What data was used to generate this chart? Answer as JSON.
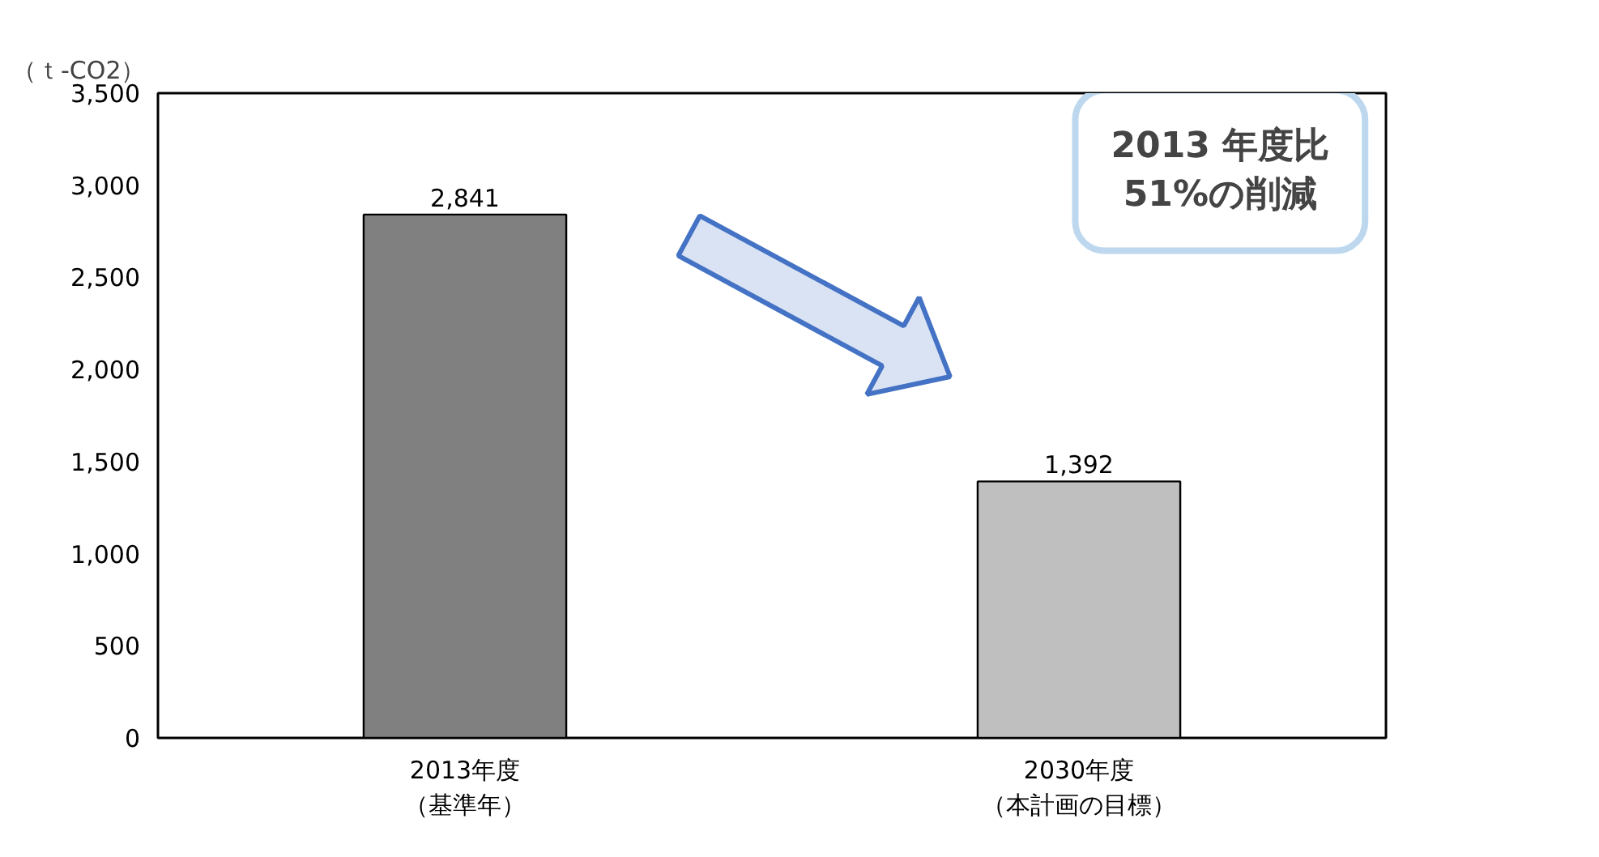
{
  "chart_data": {
    "type": "bar",
    "ylabel": "（ｔ-CO2）",
    "categories": [
      "2013年度（基準年）",
      "2030年度（本計画の目標）"
    ],
    "values": [
      2841,
      1392
    ],
    "value_labels": [
      "2,841",
      "1,392"
    ],
    "colors": [
      "#808080",
      "#bfbfbf"
    ],
    "ylim": [
      0,
      3500
    ],
    "yticks": [
      0,
      500,
      {
        "value": 1000,
        "label": "1,000"
      },
      {
        "value": 1500,
        "label": "1,500"
      },
      {
        "value": 2000,
        "label": "2,000"
      },
      {
        "value": 2500,
        "label": "2,500"
      },
      {
        "value": 3000,
        "label": "3,000"
      },
      {
        "value": 3500,
        "label": "3,500"
      }
    ],
    "annotations": [
      "2013 年度比\n51%の削減"
    ]
  }
}
